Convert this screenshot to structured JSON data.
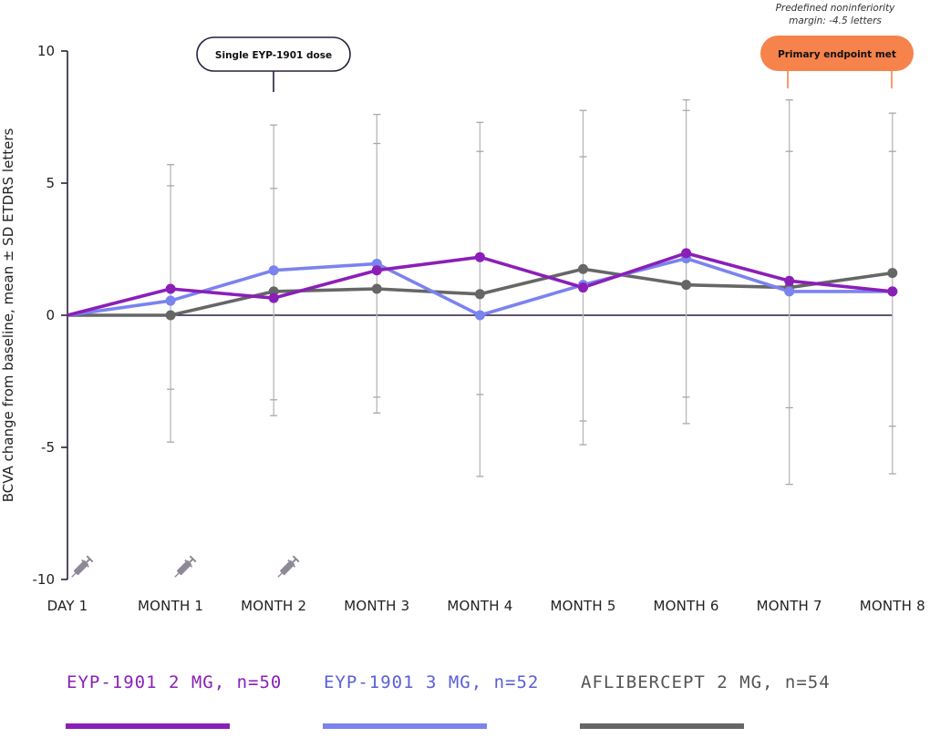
{
  "chart_data": {
    "type": "line",
    "ylabel": "BCVA change from baseline, mean ± SD ETDRS letters",
    "xlabel": "",
    "ylim": [
      -10,
      10
    ],
    "yticks": [
      10,
      5,
      0,
      -5,
      -10
    ],
    "ytick_labels": [
      "10",
      "5",
      "0",
      "-5",
      "-10"
    ],
    "categories": [
      "DAY 1",
      "MONTH 1",
      "MONTH 2",
      "MONTH 3",
      "MONTH 4",
      "MONTH 5",
      "MONTH 6",
      "MONTH 7",
      "MONTH 8"
    ],
    "series": [
      {
        "name": "EYP-1901 2 MG, n=50",
        "color": "#8a1fb8",
        "values": [
          0,
          1.0,
          0.65,
          1.7,
          2.2,
          1.05,
          2.35,
          1.3,
          0.9
        ]
      },
      {
        "name": "EYP-1901 3 MG, n=52",
        "color": "#7b83ef",
        "values": [
          0,
          0.55,
          1.7,
          1.95,
          0,
          1.15,
          2.15,
          0.9,
          0.9
        ]
      },
      {
        "name": "AFLIBERCEPT 2 MG, n=54",
        "color": "#666666",
        "values": [
          0,
          0,
          0.9,
          1.0,
          0.8,
          1.75,
          1.15,
          1.05,
          1.6
        ]
      }
    ],
    "error_bars": [
      {
        "category": "MONTH 1",
        "caps": [
          5.7,
          4.9,
          -2.8,
          -4.8
        ]
      },
      {
        "category": "MONTH 2",
        "caps": [
          7.2,
          4.8,
          -3.2,
          -3.8
        ]
      },
      {
        "category": "MONTH 3",
        "caps": [
          7.6,
          6.5,
          -3.1,
          -3.7
        ]
      },
      {
        "category": "MONTH 4",
        "caps": [
          7.3,
          6.2,
          -3.0,
          -6.1
        ]
      },
      {
        "category": "MONTH 5",
        "caps": [
          7.75,
          6.0,
          -4.0,
          -4.9
        ]
      },
      {
        "category": "MONTH 6",
        "caps": [
          8.15,
          7.75,
          -3.1,
          -4.1
        ]
      },
      {
        "category": "MONTH 7",
        "caps": [
          8.15,
          6.2,
          -3.5,
          -6.4
        ]
      },
      {
        "category": "MONTH 8",
        "caps": [
          7.65,
          6.2,
          -4.2,
          -6.0
        ]
      }
    ],
    "injection_categories": [
      "DAY 1",
      "MONTH 1",
      "MONTH 2"
    ],
    "annotations": {
      "single_dose": {
        "text": "Single EYP-1901 dose",
        "category": "MONTH 2"
      },
      "primary_endpoint": {
        "text": "Primary endpoint met",
        "color": "#f5834b",
        "categories": [
          "MONTH 7",
          "MONTH 8"
        ]
      },
      "margin_note": [
        "Predefined noninferiority",
        "margin: -4.5 letters"
      ]
    },
    "legend_position": "bottom",
    "grid": false
  },
  "icons": {
    "injection": "syringe-icon"
  }
}
